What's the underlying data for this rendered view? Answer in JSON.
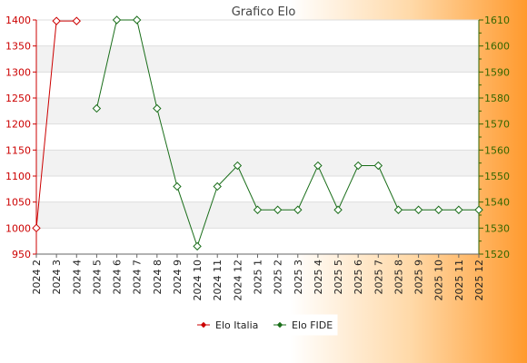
{
  "chart_data": {
    "type": "line",
    "title": "Grafico Elo",
    "categories": [
      "2024 2",
      "2024 3",
      "2024 4",
      "2024 5",
      "2024 6",
      "2024 7",
      "2024 8",
      "2024 9",
      "2024 10",
      "2024 11",
      "2024 12",
      "2025 1",
      "2025 2",
      "2025 3",
      "2025 4",
      "2025 5",
      "2025 6",
      "2025 7",
      "2025 8",
      "2025 9",
      "2025 10",
      "2025 11",
      "2025 12"
    ],
    "left_axis": {
      "min": 950,
      "max": 1400,
      "ticks": [
        950,
        1000,
        1050,
        1100,
        1150,
        1200,
        1250,
        1300,
        1350,
        1400
      ],
      "color": "#cc0000"
    },
    "right_axis": {
      "min": 1520,
      "max": 1610,
      "ticks": [
        1520,
        1530,
        1540,
        1550,
        1560,
        1570,
        1580,
        1590,
        1600,
        1610
      ],
      "color": "#336600"
    },
    "series": [
      {
        "name": "Elo Italia",
        "axis": "left",
        "color": "#cc0000",
        "values": [
          1000,
          1398,
          1398,
          null,
          null,
          null,
          null,
          null,
          null,
          null,
          null,
          null,
          null,
          null,
          null,
          null,
          null,
          null,
          null,
          null,
          null,
          null,
          null
        ]
      },
      {
        "name": "Elo FIDE",
        "axis": "right",
        "color": "#1a6e1a",
        "values": [
          null,
          null,
          null,
          1576,
          1610,
          1610,
          1576,
          1546,
          1523,
          1546,
          1554,
          1537,
          1537,
          1537,
          1554,
          1537,
          1554,
          1554,
          1537,
          1537,
          1537,
          1537,
          1537
        ]
      }
    ],
    "grid": true,
    "legend": "bottom-center"
  }
}
